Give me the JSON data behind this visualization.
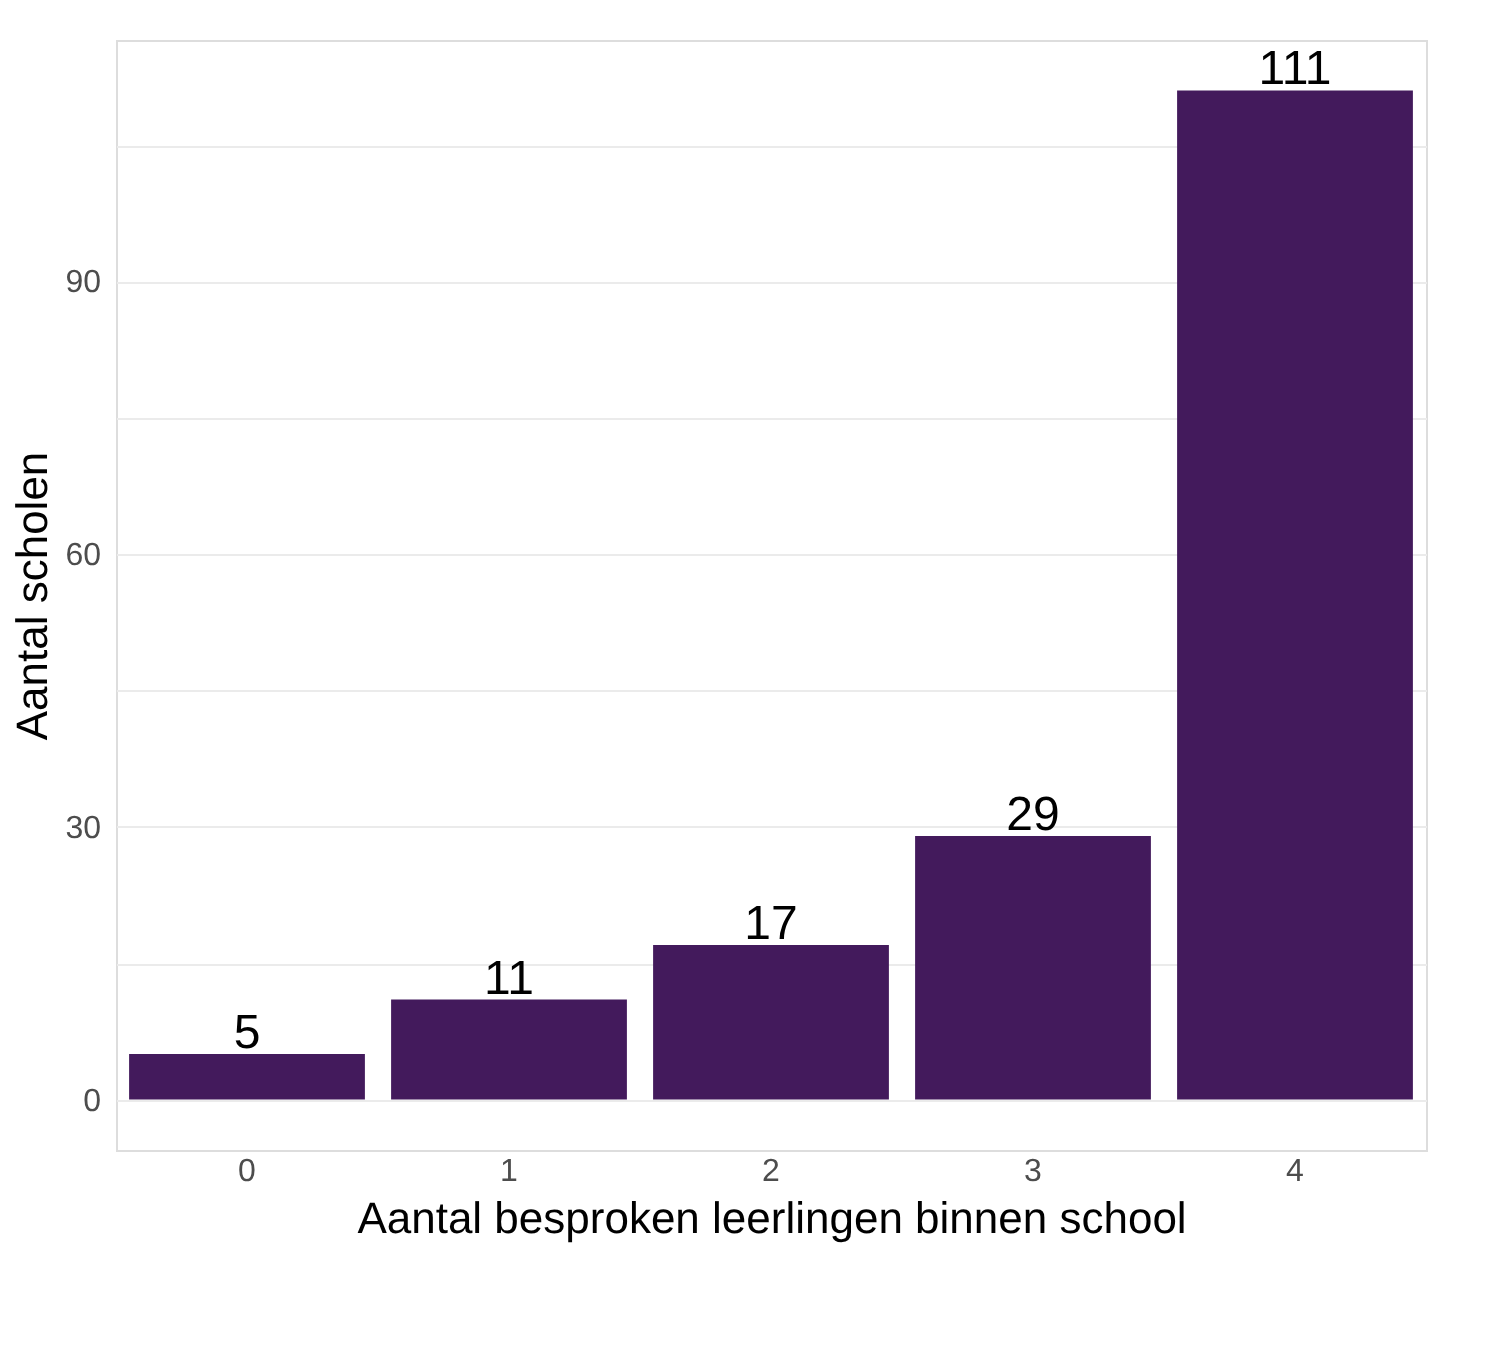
{
  "chart_data": {
    "type": "bar",
    "xlabel": "Aantal besproken leerlingen binnen school",
    "ylabel": "Aantal scholen",
    "categories": [
      "0",
      "1",
      "2",
      "3",
      "4"
    ],
    "values": [
      5,
      11,
      17,
      29,
      111
    ],
    "color": "#431a5c",
    "ylim": [
      -5.55,
      116.55
    ],
    "yticks": [
      0,
      {
        "value": 15,
        "label": null
      },
      30,
      {
        "value": 45,
        "label": null
      },
      60,
      {
        "value": 75,
        "label": null
      },
      90,
      {
        "value": 105,
        "label": null
      }
    ],
    "grid": "y",
    "data_labels": true
  }
}
